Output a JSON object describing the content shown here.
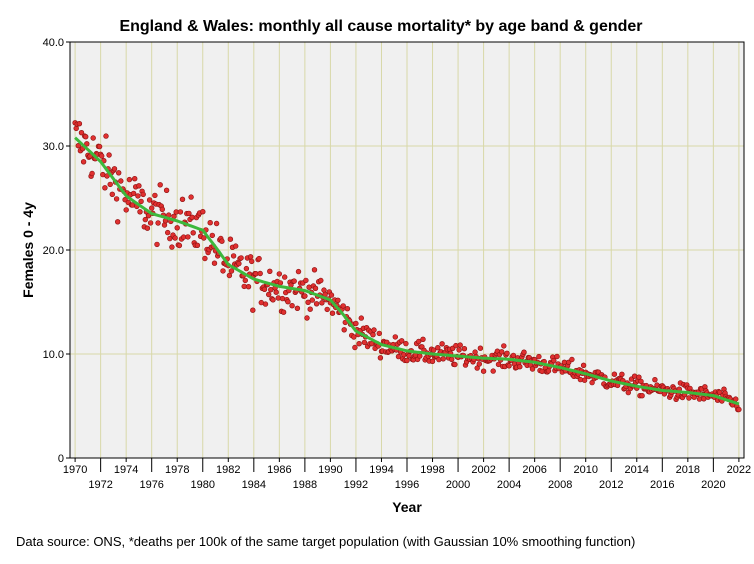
{
  "chart_data": {
    "type": "scatter",
    "title": "England & Wales: monthly all cause mortality* by age band & gender",
    "xlabel": "Year",
    "ylabel": "Females 0 - 4y",
    "xlim": [
      1969.6,
      2022.4
    ],
    "ylim": [
      0,
      40
    ],
    "x_ticks_upper": [
      "1970",
      "1974",
      "1978",
      "1982",
      "1986",
      "1990",
      "1994",
      "1998",
      "2002",
      "2006",
      "2010",
      "2014",
      "2018",
      "2022"
    ],
    "x_ticks_lower": [
      "1972",
      "1976",
      "1980",
      "1984",
      "1988",
      "1992",
      "1996",
      "2000",
      "2004",
      "2008",
      "2012",
      "2016",
      "2020"
    ],
    "y_ticks": [
      "0",
      "10.0",
      "20.0",
      "30.0",
      "40.0"
    ],
    "grid": true,
    "plot_background": "#f0f0f0",
    "grid_color": "#d8d8a8",
    "series": [
      {
        "kind": "monthly observations (points)",
        "color": "#e03030",
        "stroke": "#8b1010",
        "x_start": 1970.0,
        "step_months": 1,
        "trend_anchors": [
          [
            1970,
            30.8
          ],
          [
            1972,
            28.5
          ],
          [
            1974,
            25.2
          ],
          [
            1976,
            23.5
          ],
          [
            1978,
            22.8
          ],
          [
            1980,
            21.9
          ],
          [
            1981,
            20.3
          ],
          [
            1982,
            18.6
          ],
          [
            1984,
            17.2
          ],
          [
            1986,
            16.5
          ],
          [
            1988,
            16.1
          ],
          [
            1990,
            15.2
          ],
          [
            1991,
            13.8
          ],
          [
            1992,
            12.2
          ],
          [
            1994,
            10.9
          ],
          [
            1996,
            10.3
          ],
          [
            1998,
            10.0
          ],
          [
            2000,
            9.8
          ],
          [
            2002,
            9.6
          ],
          [
            2004,
            9.5
          ],
          [
            2006,
            9.2
          ],
          [
            2008,
            8.7
          ],
          [
            2010,
            8.1
          ],
          [
            2012,
            7.4
          ],
          [
            2014,
            6.9
          ],
          [
            2016,
            6.5
          ],
          [
            2018,
            6.3
          ],
          [
            2020,
            6.0
          ],
          [
            2022,
            5.2
          ]
        ],
        "scatter_spread": [
          [
            1970,
            2.6
          ],
          [
            1985,
            2.2
          ],
          [
            1995,
            1.0
          ],
          [
            2022,
            0.7
          ]
        ]
      },
      {
        "kind": "Gaussian 10% smoothing (line)",
        "color": "#3cb83c",
        "values": [
          [
            1970,
            30.8
          ],
          [
            1972,
            28.5
          ],
          [
            1974,
            25.2
          ],
          [
            1976,
            23.5
          ],
          [
            1978,
            22.8
          ],
          [
            1980,
            21.9
          ],
          [
            1981,
            20.3
          ],
          [
            1982,
            18.6
          ],
          [
            1984,
            17.2
          ],
          [
            1986,
            16.5
          ],
          [
            1988,
            16.1
          ],
          [
            1990,
            15.2
          ],
          [
            1991,
            13.8
          ],
          [
            1992,
            12.2
          ],
          [
            1994,
            10.9
          ],
          [
            1996,
            10.3
          ],
          [
            1998,
            10.0
          ],
          [
            2000,
            9.8
          ],
          [
            2002,
            9.6
          ],
          [
            2004,
            9.5
          ],
          [
            2006,
            9.2
          ],
          [
            2008,
            8.7
          ],
          [
            2010,
            8.1
          ],
          [
            2012,
            7.4
          ],
          [
            2014,
            6.9
          ],
          [
            2016,
            6.5
          ],
          [
            2018,
            6.3
          ],
          [
            2020,
            6.0
          ],
          [
            2022,
            5.2
          ]
        ]
      }
    ],
    "footnote": "Data source: ONS, *deaths per 100k of the same target population (with Gaussian 10% smoothing function)"
  }
}
